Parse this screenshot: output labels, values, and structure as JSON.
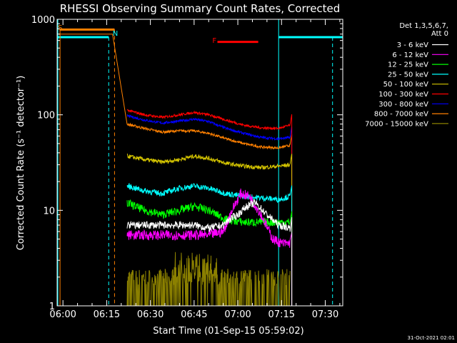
{
  "chart_data": {
    "type": "line",
    "title": "RHESSI Observing Summary Count Rates, Corrected",
    "xlabel": "Start Time (01-Sep-15 05:59:02)",
    "ylabel": "Corrected Count Rate (s⁻¹ detector⁻¹)",
    "y_scale": "log",
    "ylim": [
      1,
      1000
    ],
    "xlim_minutes": [
      -2,
      96
    ],
    "x_ticks": [
      {
        "label": "06:00",
        "minutes": 0
      },
      {
        "label": "06:15",
        "minutes": 15
      },
      {
        "label": "06:30",
        "minutes": 30
      },
      {
        "label": "06:45",
        "minutes": 45
      },
      {
        "label": "07:00",
        "minutes": 60
      },
      {
        "label": "07:15",
        "minutes": 75
      },
      {
        "label": "07:30",
        "minutes": 90
      }
    ],
    "y_ticks": [
      {
        "label": "1",
        "value": 1
      },
      {
        "label": "10",
        "value": 10
      },
      {
        "label": "100",
        "value": 100
      },
      {
        "label": "1000",
        "value": 1000
      }
    ],
    "legend": {
      "placement": "right",
      "header": [
        "Det 1,3,5,6,7,",
        "Att 0"
      ]
    },
    "series": [
      {
        "name": "3 - 6 keV",
        "color": "#ffffff",
        "x": [
          22,
          30,
          38,
          45,
          50,
          55,
          57,
          60,
          63,
          66,
          70,
          74,
          78
        ],
        "y": [
          7,
          7,
          7,
          7,
          6.5,
          7,
          8,
          9,
          11,
          12,
          9,
          7,
          6.5
        ]
      },
      {
        "name": "6 - 12 keV",
        "color": "#ff00ff",
        "x": [
          22,
          28,
          34,
          40,
          45,
          50,
          55,
          58,
          61,
          64,
          68,
          72,
          75,
          78
        ],
        "y": [
          5.5,
          5.5,
          5.5,
          5.5,
          5.5,
          5.5,
          6,
          10,
          15,
          14,
          9,
          5,
          4.5,
          4.5
        ]
      },
      {
        "name": "12 - 25 keV",
        "color": "#00ff00",
        "x": [
          22,
          28,
          34,
          40,
          45,
          50,
          56,
          62,
          68,
          74,
          78
        ],
        "y": [
          12,
          10,
          9,
          10,
          11,
          10,
          8,
          7.5,
          7.5,
          7.5,
          7.5
        ]
      },
      {
        "name": "25 - 50 keV",
        "color": "#00ffff",
        "x": [
          22,
          28,
          34,
          40,
          45,
          50,
          56,
          62,
          68,
          74,
          78
        ],
        "y": [
          18,
          16,
          15,
          17,
          18,
          17,
          15,
          14,
          13.5,
          13,
          14
        ]
      },
      {
        "name": "50 - 100 keV",
        "color": "#d4c400",
        "x": [
          22,
          28,
          34,
          40,
          45,
          50,
          56,
          62,
          68,
          74,
          78
        ],
        "y": [
          37,
          34,
          32,
          34,
          37,
          35,
          31,
          29,
          28,
          29,
          30
        ]
      },
      {
        "name": "100 - 300 keV",
        "color": "#ff0000",
        "x": [
          22,
          28,
          34,
          40,
          45,
          50,
          56,
          62,
          68,
          74,
          78
        ],
        "y": [
          112,
          100,
          94,
          100,
          106,
          100,
          88,
          78,
          73,
          72,
          78
        ]
      },
      {
        "name": "300 - 800 keV",
        "color": "#0000ff",
        "x": [
          22,
          28,
          34,
          40,
          45,
          50,
          56,
          62,
          68,
          74,
          78
        ],
        "y": [
          98,
          88,
          82,
          86,
          90,
          85,
          72,
          64,
          58,
          56,
          58
        ]
      },
      {
        "name": "800 - 7000 keV",
        "color": "#ff8000",
        "x": [
          -1.5,
          17,
          22,
          28,
          34,
          40,
          45,
          50,
          56,
          62,
          68,
          74,
          78
        ],
        "y": [
          700,
          700,
          80,
          72,
          66,
          68,
          68,
          64,
          56,
          50,
          46,
          45,
          48
        ]
      },
      {
        "name": "7000 - 15000 keV",
        "color": "#8b8000",
        "x": [
          22,
          30,
          36,
          40,
          45,
          50,
          56,
          60,
          66,
          72,
          78
        ],
        "y": [
          2,
          2,
          2,
          2.5,
          3,
          2.5,
          2,
          2,
          2,
          2,
          2
        ]
      }
    ],
    "annotations": [
      {
        "text": "S",
        "color": "#ff8000",
        "x_minutes": -2
      },
      {
        "text": "N",
        "color": "#00ffff",
        "x_minutes": 16.8
      },
      {
        "text": "F",
        "color": "#ff0000",
        "x_minutes": 51
      }
    ],
    "flare_bar": {
      "color": "#ff0000",
      "x_start": 53,
      "x_end": 67,
      "y": 580
    },
    "intervals": {
      "saa": {
        "color": "#ff8000",
        "x_start": -1,
        "x_end": 17.7,
        "y": 780
      },
      "night": [
        {
          "color": "#00ffff",
          "x_start": -2,
          "x_end": 15.7,
          "y": 650
        },
        {
          "color": "#00ffff",
          "x_start": 74,
          "x_end": 96,
          "y": 650
        }
      ]
    }
  },
  "footer_timestamp": "31-Oct-2021 02:01"
}
